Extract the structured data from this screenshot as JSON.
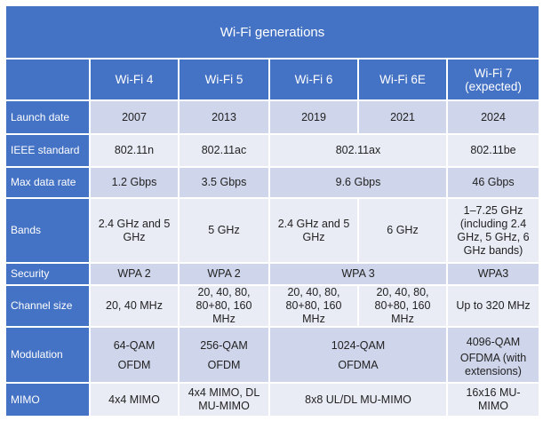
{
  "table": {
    "title": "Wi-Fi generations",
    "headers": [
      "Wi-Fi 4",
      "Wi-Fi 5",
      "Wi-Fi 6",
      "Wi-Fi 6E",
      [
        "Wi-Fi 7",
        "(expected)"
      ]
    ],
    "rows": [
      {
        "label": "Launch date",
        "cells": [
          "2007",
          "2013",
          "2019",
          "2021",
          "2024"
        ]
      },
      {
        "label": "IEEE standard",
        "cells": [
          "802.11n",
          "802.11ac",
          "802.11ax",
          "802.11be"
        ]
      },
      {
        "label": "Max data rate",
        "cells": [
          "1.2 Gbps",
          "3.5 Gbps",
          "9.6 Gbps",
          "46 Gbps"
        ]
      },
      {
        "label": "Bands",
        "cells": [
          "2.4 GHz and 5 GHz",
          "5 GHz",
          "2.4 GHz and 5 GHz",
          "6 GHz",
          "1–7.25 GHz (including 2.4 GHz, 5 GHz, 6 GHz bands)"
        ]
      },
      {
        "label": "Security",
        "cells": [
          "WPA 2",
          "WPA 2",
          "WPA 3",
          "WPA3"
        ]
      },
      {
        "label": "Channel size",
        "cells": [
          "20, 40 MHz",
          "20, 40, 80, 80+80, 160 MHz",
          "20, 40, 80, 80+80, 160 MHz",
          "20, 40, 80, 80+80, 160 MHz",
          "Up to 320 MHz"
        ]
      },
      {
        "label": "Modulation",
        "cells": [
          [
            "64-QAM",
            "OFDM"
          ],
          [
            "256-QAM",
            "OFDM"
          ],
          [
            "1024-QAM",
            "OFDMA"
          ],
          [
            "4096-QAM",
            "OFDMA (with extensions)"
          ]
        ]
      },
      {
        "label": "MIMO",
        "cells": [
          "4x4 MIMO",
          "4x4 MIMO, DL MU-MIMO",
          "8x8 UL/DL MU-MIMO",
          "16x16 MU-MIMO"
        ]
      }
    ]
  }
}
